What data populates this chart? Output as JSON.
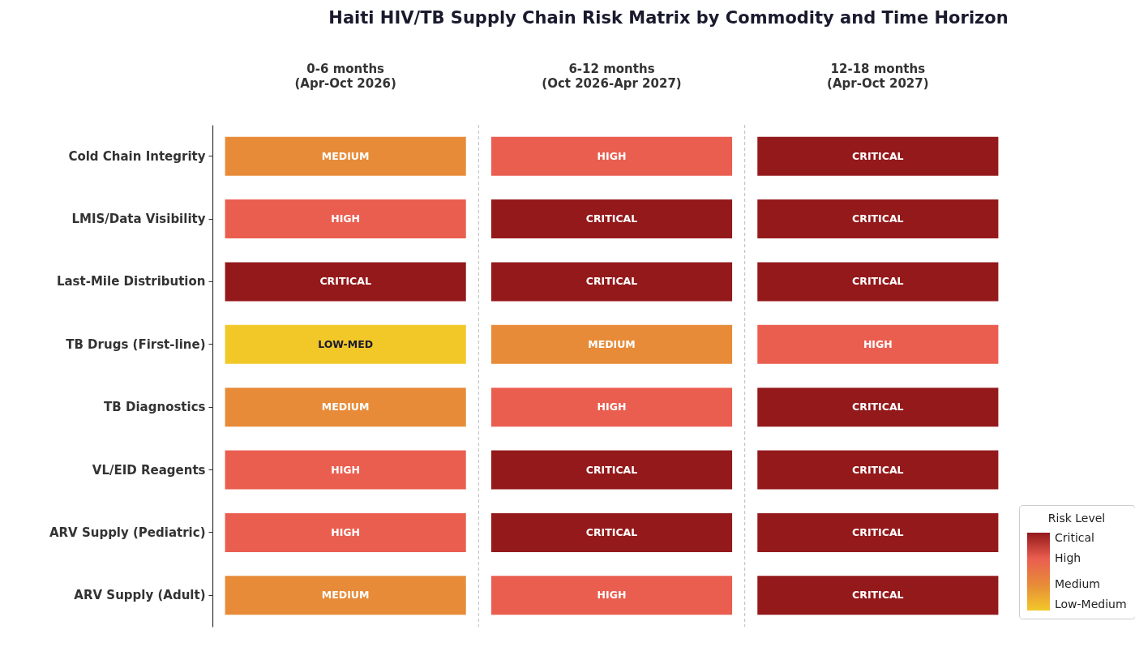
{
  "chart_data": {
    "type": "heatmap",
    "title": "Haiti HIV/TB Supply Chain Risk Matrix by Commodity and Time Horizon",
    "categories": [
      "0-6 months\n(Apr-Oct 2026)",
      "6-12 months\n(Oct 2026-Apr 2027)",
      "12-18 months\n(Apr-Oct 2027)"
    ],
    "y_categories": [
      "Cold Chain Integrity",
      "LMIS/Data Visibility",
      "Last-Mile Distribution",
      "TB Drugs (First-line)",
      "TB Diagnostics",
      "VL/EID Reagents",
      "ARV Supply (Pediatric)",
      "ARV Supply (Adult)"
    ],
    "cells": [
      [
        2,
        3,
        4
      ],
      [
        3,
        4,
        4
      ],
      [
        4,
        4,
        4
      ],
      [
        1,
        2,
        3
      ],
      [
        2,
        3,
        4
      ],
      [
        3,
        4,
        4
      ],
      [
        3,
        4,
        4
      ],
      [
        2,
        3,
        4
      ]
    ],
    "cell_labels": [
      [
        "MEDIUM",
        "HIGH",
        "CRITICAL"
      ],
      [
        "HIGH",
        "CRITICAL",
        "CRITICAL"
      ],
      [
        "CRITICAL",
        "CRITICAL",
        "CRITICAL"
      ],
      [
        "LOW-MED",
        "MEDIUM",
        "HIGH"
      ],
      [
        "MEDIUM",
        "HIGH",
        "CRITICAL"
      ],
      [
        "HIGH",
        "CRITICAL",
        "CRITICAL"
      ],
      [
        "HIGH",
        "CRITICAL",
        "CRITICAL"
      ],
      [
        "MEDIUM",
        "HIGH",
        "CRITICAL"
      ]
    ],
    "cticks": [
      {
        "value": 1,
        "label": "Low-Medium"
      },
      {
        "value": 2,
        "label": "Medium"
      },
      {
        "value": 3,
        "label": "High"
      },
      {
        "value": 4,
        "label": "Critical"
      }
    ],
    "colors": [
      "#f2c829",
      "#e78b38",
      "#ea5e50",
      "#94191b"
    ],
    "clabel": "Risk Level",
    "grid": "x"
  }
}
